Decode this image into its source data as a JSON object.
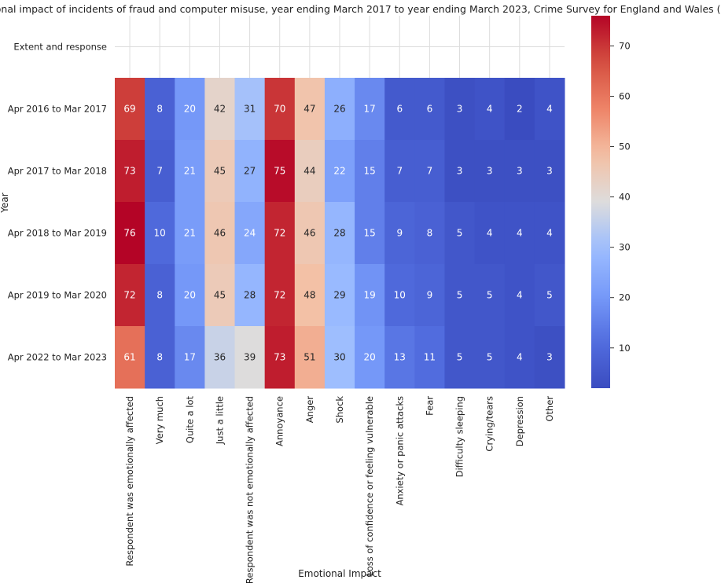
{
  "chart_data": {
    "type": "heatmap",
    "title": "Emotional impact of incidents of fraud and computer misuse, year ending March 2017 to year ending March 2023, Crime Survey for England and Wales (CSEW)",
    "xlabel": "Emotional Impact",
    "ylabel": "Year",
    "categories": [
      "Respondent was emotionally affected",
      "Very much",
      "Quite a lot",
      "Just a little",
      "Respondent was not emotionally affected",
      "Annoyance",
      "Anger",
      "Shock",
      "Loss of confidence or feeling vulnerable",
      "Anxiety or panic attacks",
      "Fear",
      "Difficulty sleeping",
      "Crying/tears",
      "Depression",
      "Other"
    ],
    "rows": [
      "Extent and response",
      "Apr 2016 to Mar 2017",
      "Apr 2017 to Mar 2018",
      "Apr 2018 to Mar 2019",
      "Apr 2019 to Mar 2020",
      "Apr 2022 to Mar 2023"
    ],
    "values": [
      [
        null,
        null,
        null,
        null,
        null,
        null,
        null,
        null,
        null,
        null,
        null,
        null,
        null,
        null,
        null
      ],
      [
        69,
        8,
        20,
        42,
        31,
        70,
        47,
        26,
        17,
        6,
        6,
        3,
        4,
        2,
        4
      ],
      [
        73,
        7,
        21,
        45,
        27,
        75,
        44,
        22,
        15,
        7,
        7,
        3,
        3,
        3,
        3
      ],
      [
        76,
        10,
        21,
        46,
        24,
        72,
        46,
        28,
        15,
        9,
        8,
        5,
        4,
        4,
        4
      ],
      [
        72,
        8,
        20,
        45,
        28,
        72,
        48,
        29,
        19,
        10,
        9,
        5,
        5,
        4,
        5
      ],
      [
        61,
        8,
        17,
        36,
        39,
        73,
        51,
        30,
        20,
        13,
        11,
        5,
        5,
        4,
        3
      ]
    ],
    "colorscale": "coolwarm",
    "vmin": 2,
    "vmax": 76,
    "colorbar_ticks": [
      10,
      20,
      30,
      40,
      50,
      60,
      70
    ],
    "grid": true
  }
}
